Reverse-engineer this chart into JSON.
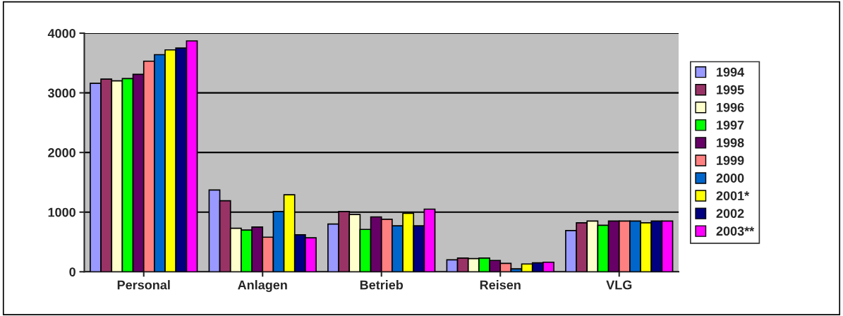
{
  "chart_data": {
    "type": "bar",
    "categories": [
      "Personal",
      "Anlagen",
      "Betrieb",
      "Reisen",
      "VLG"
    ],
    "ylim": [
      0,
      4000
    ],
    "yticks": [
      0,
      1000,
      2000,
      3000,
      4000
    ],
    "grid": "y",
    "legend": "right",
    "series": [
      {
        "name": "1994",
        "color": "#9999ff",
        "values": [
          3160,
          1370,
          800,
          200,
          690
        ]
      },
      {
        "name": "1995",
        "color": "#993366",
        "values": [
          3230,
          1190,
          1010,
          230,
          820
        ]
      },
      {
        "name": "1996",
        "color": "#ffffcc",
        "values": [
          3200,
          730,
          960,
          220,
          850
        ]
      },
      {
        "name": "1997",
        "color": "#00ff00",
        "values": [
          3240,
          700,
          710,
          230,
          780
        ]
      },
      {
        "name": "1998",
        "color": "#660066",
        "values": [
          3310,
          750,
          920,
          190,
          850
        ]
      },
      {
        "name": "1999",
        "color": "#ff8080",
        "values": [
          3530,
          580,
          880,
          140,
          850
        ]
      },
      {
        "name": "2000",
        "color": "#0066cc",
        "values": [
          3640,
          1010,
          770,
          50,
          850
        ]
      },
      {
        "name": "2001*",
        "color": "#ffff00",
        "values": [
          3720,
          1290,
          980,
          130,
          820
        ]
      },
      {
        "name": "2002",
        "color": "#000080",
        "values": [
          3750,
          620,
          770,
          150,
          850
        ]
      },
      {
        "name": "2003**",
        "color": "#ff00ff",
        "values": [
          3870,
          570,
          1050,
          160,
          850
        ]
      }
    ]
  }
}
